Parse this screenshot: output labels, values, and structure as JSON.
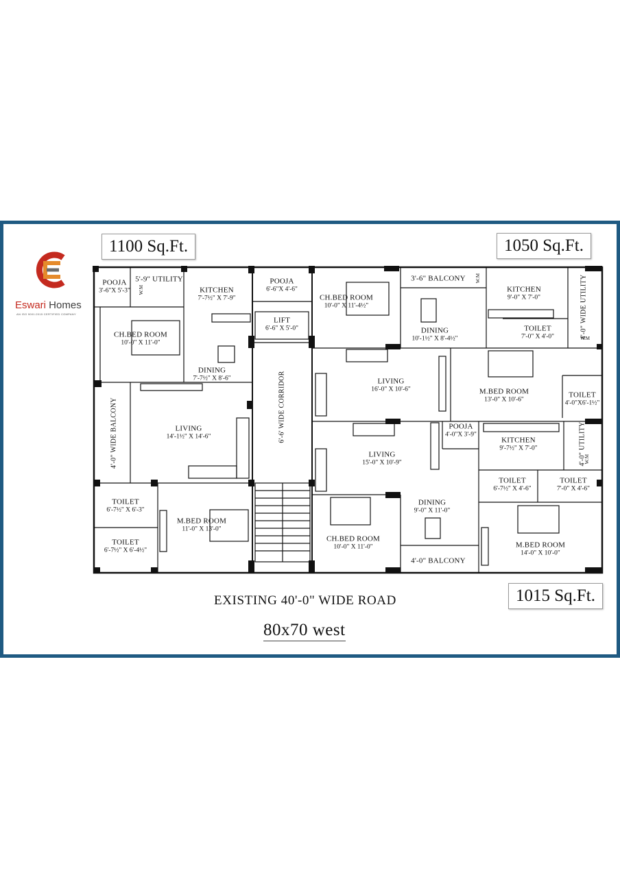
{
  "colors": {
    "frame": "#1f5a82",
    "brand_red": "#c42a1f",
    "brand_grey": "#3e3e3e",
    "wall": "#111111"
  },
  "logo": {
    "icon": "eswari-logo-icon",
    "brand_part1": "Eswari",
    "brand_part2": " Homes",
    "tagline": "AN ISO 9001:2015 CERTIFIED COMPANY"
  },
  "areas": {
    "left": "1100 Sq.Ft.",
    "right_top": "1050 Sq.Ft.",
    "right_bottom": "1015 Sq.Ft."
  },
  "rooms": {
    "pooja_1": {
      "name": "POOJA",
      "dim": "3'-6\"X 5'-3\""
    },
    "utility_1": {
      "name": "5'-9\" UTILITY"
    },
    "kitchen_1": {
      "name": "KITCHEN",
      "dim": "7'-7½\" X 7'-9\""
    },
    "chbed_1": {
      "name": "CH.BED ROOM",
      "dim": "10'-0\" X 11'-0\""
    },
    "dining_1": {
      "name": "DINING",
      "dim": "7'-7½\" X 8'-6\""
    },
    "balcony_1": {
      "name": "4'-0\" WIDE BALCONY"
    },
    "living_1": {
      "name": "LIVING",
      "dim": "14'-1½\" X 14'-6\""
    },
    "toilet_1": {
      "name": "TOILET",
      "dim": "6'-7½\" X 6'-3\""
    },
    "toilet_2": {
      "name": "TOILET",
      "dim": "6'-7½\" X 6'-4½\""
    },
    "mbed_1": {
      "name": "M.BED ROOM",
      "dim": "11'-0\" X 13'-0\""
    },
    "pooja_2": {
      "name": "POOJA",
      "dim": "6'-6\"X 4'-6\""
    },
    "lift": {
      "name": "LIFT",
      "dim": "6'-6\" X 5'-0\""
    },
    "corridor": {
      "name": "6'-6' WIDE CORRIDOR"
    },
    "chbed_2": {
      "name": "CH.BED ROOM",
      "dim": "10'-0\" X 11'-4½\""
    },
    "balcony_2": {
      "name": "3'-6\"  BALCONY"
    },
    "dining_2": {
      "name": "DINING",
      "dim": "10'-1½\" X 8'-4½\""
    },
    "kitchen_2": {
      "name": "KITCHEN",
      "dim": "9'-0\" X 7'-0\""
    },
    "toilet_3": {
      "name": "TOILET",
      "dim": "7'-0\" X 4'-0\""
    },
    "utility_2": {
      "name": "4'-0\" WIDE UTILITY"
    },
    "living_2": {
      "name": "LIVING",
      "dim": "16'-0\" X 10'-6\""
    },
    "mbed_2": {
      "name": "M.BED ROOM",
      "dim": "13'-0\" X 10'-6\""
    },
    "toilet_4": {
      "name": "TOILET",
      "dim": "4'-0\"X6'-1½\""
    },
    "pooja_3": {
      "name": "POOJA",
      "dim": "4'-0\"X 3'-9\""
    },
    "kitchen_3": {
      "name": "KITCHEN",
      "dim": "9'-7½\" X 7'-0\""
    },
    "utility_3": {
      "name": "4'-0\" UTILITY"
    },
    "living_3": {
      "name": "LIVING",
      "dim": "15'-0\" X 10'-9\""
    },
    "toilet_5": {
      "name": "TOILET",
      "dim": "6'-7½\" X 4'-6\""
    },
    "toilet_6": {
      "name": "TOILET",
      "dim": "7'-0\" X 4'-6\""
    },
    "dining_3": {
      "name": "DINING",
      "dim": "9'-0\" X 11'-0\""
    },
    "chbed_3": {
      "name": "CH.BED ROOM",
      "dim": "10'-0\" X 11'-0\""
    },
    "balcony_3": {
      "name": "4'-0\" BALCONY"
    },
    "mbed_3": {
      "name": "M.BED ROOM",
      "dim": "14'-0\" X 10'-0\""
    }
  },
  "wm_label": "W.M",
  "road": "EXISTING 40'-0\" WIDE ROAD",
  "plot_size": "80x70 west"
}
